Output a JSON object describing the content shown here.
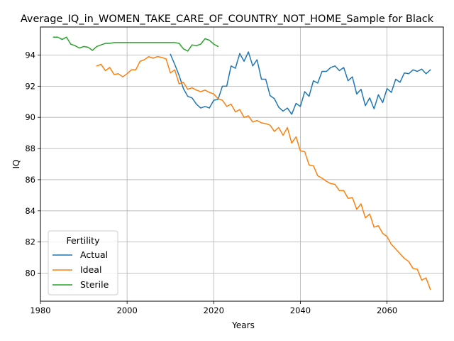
{
  "chart_data": {
    "type": "line",
    "title": "Average_IQ_in_WOMEN_TAKE_CARE_OF_COUNTRY_NOT_HOME_Sample for Black",
    "xlabel": "Years",
    "ylabel": "IQ",
    "xlim": [
      1980,
      2073
    ],
    "ylim": [
      78.2,
      95.8
    ],
    "xticks": [
      1980,
      2000,
      2020,
      2040,
      2060
    ],
    "yticks": [
      80,
      82,
      84,
      86,
      88,
      90,
      92,
      94
    ],
    "grid": true,
    "legend": {
      "title": "Fertility",
      "position": "lower-left"
    },
    "series": [
      {
        "name": "Actual",
        "color": "#1f77b4",
        "x": [
          2010,
          2011,
          2012,
          2013,
          2014,
          2015,
          2016,
          2017,
          2018,
          2019,
          2020,
          2021,
          2022,
          2023,
          2024,
          2025,
          2026,
          2027,
          2028,
          2029,
          2030,
          2031,
          2032,
          2033,
          2034,
          2035,
          2036,
          2037,
          2038,
          2039,
          2040,
          2041,
          2042,
          2043,
          2044,
          2045,
          2046,
          2047,
          2048,
          2049,
          2050,
          2051,
          2052,
          2053,
          2054,
          2055,
          2056,
          2057,
          2058,
          2059,
          2060,
          2061,
          2062,
          2063,
          2064,
          2065,
          2066,
          2067,
          2068,
          2069,
          2070
        ],
        "y": [
          94.05,
          93.4,
          92.7,
          91.85,
          91.35,
          91.25,
          90.85,
          90.6,
          90.7,
          90.6,
          91.1,
          91.15,
          92.0,
          92.0,
          93.3,
          93.15,
          94.1,
          93.6,
          94.2,
          93.3,
          93.7,
          92.45,
          92.45,
          91.4,
          91.2,
          90.65,
          90.4,
          90.6,
          90.2,
          90.9,
          90.7,
          91.65,
          91.35,
          92.35,
          92.2,
          92.95,
          92.95,
          93.2,
          93.3,
          93.0,
          93.2,
          92.35,
          92.6,
          91.5,
          91.8,
          90.75,
          91.25,
          90.55,
          91.45,
          90.95,
          91.85,
          91.6,
          92.45,
          92.25,
          92.85,
          92.8,
          93.05,
          92.95,
          93.1,
          92.8,
          93.05
        ]
      },
      {
        "name": "Ideal",
        "color": "#ff7f0e",
        "x": [
          1993,
          1994,
          1995,
          1996,
          1997,
          1998,
          1999,
          2000,
          2001,
          2002,
          2003,
          2004,
          2005,
          2006,
          2007,
          2008,
          2009,
          2010,
          2011,
          2012,
          2013,
          2014,
          2015,
          2016,
          2017,
          2018,
          2019,
          2020,
          2021,
          2022,
          2023,
          2024,
          2025,
          2026,
          2027,
          2028,
          2029,
          2030,
          2031,
          2032,
          2033,
          2034,
          2035,
          2036,
          2037,
          2038,
          2039,
          2040,
          2041,
          2042,
          2043,
          2044,
          2045,
          2046,
          2047,
          2048,
          2049,
          2050,
          2051,
          2052,
          2053,
          2054,
          2055,
          2056,
          2057,
          2058,
          2059,
          2060,
          2061,
          2062,
          2063,
          2064,
          2065,
          2066,
          2067,
          2068,
          2069,
          2070
        ],
        "y": [
          93.3,
          93.4,
          93.0,
          93.2,
          92.75,
          92.8,
          92.6,
          92.8,
          93.05,
          93.05,
          93.6,
          93.7,
          93.9,
          93.8,
          93.9,
          93.85,
          93.75,
          92.85,
          93.05,
          92.15,
          92.25,
          91.8,
          91.9,
          91.75,
          91.65,
          91.75,
          91.6,
          91.5,
          91.2,
          91.1,
          90.7,
          90.85,
          90.35,
          90.5,
          90.0,
          90.1,
          89.7,
          89.8,
          89.65,
          89.6,
          89.5,
          89.1,
          89.35,
          88.85,
          89.35,
          88.35,
          88.75,
          87.85,
          87.8,
          86.95,
          86.9,
          86.25,
          86.1,
          85.9,
          85.75,
          85.7,
          85.3,
          85.3,
          84.8,
          84.85,
          84.1,
          84.45,
          83.55,
          83.8,
          82.95,
          83.05,
          82.55,
          82.35,
          81.85,
          81.55,
          81.25,
          80.95,
          80.75,
          80.3,
          80.25,
          79.55,
          79.7,
          78.95
        ]
      },
      {
        "name": "Sterile",
        "color": "#2ca02c",
        "x": [
          1983,
          1984,
          1985,
          1986,
          1987,
          1988,
          1989,
          1990,
          1991,
          1992,
          1993,
          1994,
          1995,
          1996,
          1997,
          1998,
          1999,
          2000,
          2001,
          2002,
          2003,
          2004,
          2005,
          2006,
          2007,
          2008,
          2009,
          2010,
          2011,
          2012,
          2013,
          2014,
          2015,
          2016,
          2017,
          2018,
          2019,
          2020,
          2021
        ],
        "y": [
          95.15,
          95.15,
          95.0,
          95.15,
          94.7,
          94.6,
          94.45,
          94.55,
          94.5,
          94.3,
          94.55,
          94.65,
          94.75,
          94.75,
          94.8,
          94.8,
          94.8,
          94.8,
          94.8,
          94.8,
          94.8,
          94.8,
          94.8,
          94.8,
          94.8,
          94.8,
          94.8,
          94.8,
          94.8,
          94.75,
          94.4,
          94.25,
          94.65,
          94.6,
          94.7,
          95.05,
          94.95,
          94.7,
          94.55
        ]
      }
    ]
  }
}
